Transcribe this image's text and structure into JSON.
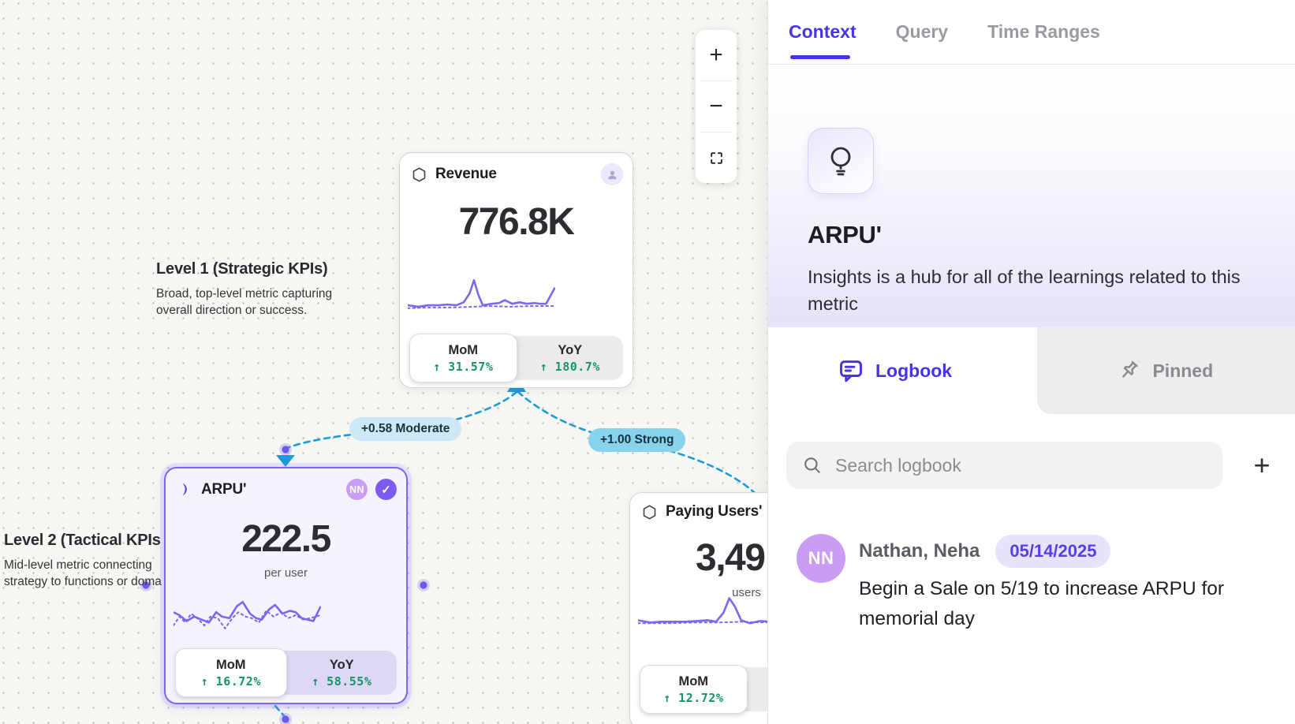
{
  "colors": {
    "accent_indigo": "#4634e6",
    "chart_purple": "#7b68f2",
    "edge_cyan": "#1b9cd8",
    "positive_green": "#159468",
    "moderate_pill_bg": "#cde8f6",
    "strong_pill_bg": "#87d3eb",
    "selected_card_border": "#7e68f0",
    "avatar_purple": "#c89df3"
  },
  "canvas": {
    "zoom_controls": {
      "zoom_in": "+",
      "zoom_out": "−"
    },
    "annotations": {
      "level1": {
        "title": "Level 1 (Strategic KPIs)",
        "description": "Broad, top-level metric capturing overall direction or success."
      },
      "level2": {
        "title": "Level 2 (Tactical KPIs",
        "description": "Mid-level metric connecting strategy to functions or doma"
      }
    },
    "edges": {
      "revenue_arpu": {
        "label": "+0.58 Moderate"
      },
      "revenue_paying": {
        "label": "+1.00 Strong"
      }
    },
    "cards": {
      "revenue": {
        "title": "Revenue",
        "value": "776.8K",
        "mom": {
          "label": "MoM",
          "change": "↑ 31.57%"
        },
        "yoy": {
          "label": "YoY",
          "change": "↑ 180.7%"
        }
      },
      "arpu": {
        "title": "ARPU'",
        "value": "222.5",
        "unit": "per user",
        "avatar_initials": "NN",
        "verified_check": "✓",
        "mom": {
          "label": "MoM",
          "change": "↑ 16.72%"
        },
        "yoy": {
          "label": "YoY",
          "change": "↑ 58.55%"
        }
      },
      "paying_users": {
        "title": "Paying Users'",
        "value": "3,49",
        "unit": "users",
        "mom": {
          "label": "MoM",
          "change": "↑ 12.72%"
        }
      }
    }
  },
  "sparklines": {
    "revenue": {
      "solid": [
        [
          0,
          22
        ],
        [
          7,
          23
        ],
        [
          14,
          22
        ],
        [
          21,
          22
        ],
        [
          27,
          21.5
        ],
        [
          33,
          22
        ],
        [
          38,
          20
        ],
        [
          42,
          14
        ],
        [
          45,
          5
        ],
        [
          48,
          15
        ],
        [
          51,
          22
        ],
        [
          57,
          21
        ],
        [
          62,
          20.5
        ],
        [
          66,
          18.5
        ],
        [
          71,
          21
        ],
        [
          76,
          20
        ],
        [
          81,
          21
        ],
        [
          86,
          20.5
        ],
        [
          90,
          21
        ],
        [
          94,
          21
        ],
        [
          100,
          10
        ]
      ],
      "dotted": [
        [
          0,
          24
        ],
        [
          15,
          23.5
        ],
        [
          30,
          23.5
        ],
        [
          45,
          23
        ],
        [
          55,
          22.5
        ],
        [
          70,
          23
        ],
        [
          85,
          22.5
        ],
        [
          100,
          22.5
        ]
      ]
    },
    "arpu": {
      "solid": [
        [
          0,
          13
        ],
        [
          4,
          15
        ],
        [
          9,
          19
        ],
        [
          14,
          16
        ],
        [
          19,
          18
        ],
        [
          24,
          20
        ],
        [
          29,
          13
        ],
        [
          33,
          16
        ],
        [
          38,
          17
        ],
        [
          43,
          9
        ],
        [
          47,
          6
        ],
        [
          52,
          14
        ],
        [
          56,
          17
        ],
        [
          60,
          18
        ],
        [
          65,
          11
        ],
        [
          69,
          8
        ],
        [
          74,
          14
        ],
        [
          79,
          12
        ],
        [
          83,
          13
        ],
        [
          87,
          17
        ],
        [
          91,
          18
        ],
        [
          95,
          19
        ],
        [
          100,
          9
        ]
      ],
      "dotted": [
        [
          0,
          22
        ],
        [
          4,
          16
        ],
        [
          8,
          20
        ],
        [
          12,
          14
        ],
        [
          16,
          17
        ],
        [
          21,
          22
        ],
        [
          25,
          16
        ],
        [
          30,
          17
        ],
        [
          35,
          24
        ],
        [
          40,
          17
        ],
        [
          44,
          13
        ],
        [
          49,
          16
        ],
        [
          53,
          17
        ],
        [
          58,
          20
        ],
        [
          63,
          12
        ],
        [
          68,
          16
        ],
        [
          73,
          13
        ],
        [
          78,
          17
        ],
        [
          83,
          15
        ],
        [
          88,
          18
        ],
        [
          93,
          17
        ],
        [
          100,
          15
        ]
      ]
    },
    "paying_users": {
      "solid": [
        [
          0,
          19
        ],
        [
          8,
          20.5
        ],
        [
          16,
          20
        ],
        [
          24,
          20
        ],
        [
          32,
          20
        ],
        [
          40,
          19.5
        ],
        [
          47,
          19
        ],
        [
          53,
          20
        ],
        [
          58,
          14
        ],
        [
          62,
          4
        ],
        [
          66,
          10
        ],
        [
          70,
          19
        ],
        [
          76,
          21
        ],
        [
          83,
          19.5
        ],
        [
          90,
          20
        ],
        [
          100,
          17
        ]
      ],
      "dotted": [
        [
          0,
          21
        ],
        [
          20,
          21
        ],
        [
          40,
          20.5
        ],
        [
          55,
          20.5
        ],
        [
          70,
          20
        ],
        [
          85,
          20.5
        ],
        [
          100,
          20
        ]
      ]
    }
  },
  "panel": {
    "tabs": [
      {
        "label": "Context",
        "active": true
      },
      {
        "label": "Query",
        "active": false
      },
      {
        "label": "Time Ranges",
        "active": false
      }
    ],
    "hero": {
      "title": "ARPU'",
      "description": "Insights is a hub for all of the learnings related to this metric"
    },
    "sub_tabs": {
      "logbook": "Logbook",
      "pinned": "Pinned"
    },
    "search": {
      "placeholder": "Search logbook",
      "add_label": "+"
    },
    "logbook_entries": [
      {
        "avatar_initials": "NN",
        "author": "Nathan, Neha",
        "date": "05/14/2025",
        "note": "Begin a Sale on 5/19 to increase ARPU for memorial day"
      }
    ]
  }
}
